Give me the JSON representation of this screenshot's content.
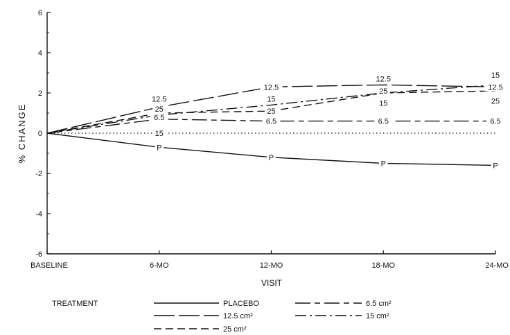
{
  "chart_data": {
    "type": "line",
    "title": "",
    "xlabel": "VISIT",
    "ylabel": "% CHANGE",
    "x": [
      "BASELINE",
      "6-MO",
      "12-MO",
      "18-MO",
      "24-MO"
    ],
    "ylim": [
      -6,
      6
    ],
    "yticks": [
      6,
      4,
      2,
      0,
      -2,
      -4,
      -6
    ],
    "reference_line": {
      "y": 0,
      "style": "dotted"
    },
    "grid": false,
    "series": [
      {
        "name": "PLACEBO",
        "marker": "P",
        "dash": "solid",
        "values": [
          0,
          -0.7,
          -1.2,
          -1.5,
          -1.6
        ]
      },
      {
        "name": "6.5 cm²",
        "marker": "6.5",
        "dash": "long-short",
        "values": [
          0,
          0.7,
          0.6,
          0.6,
          0.6
        ]
      },
      {
        "name": "12.5 cm²",
        "marker": "12.5",
        "dash": "long",
        "values": [
          0,
          1.3,
          2.3,
          2.4,
          2.3
        ]
      },
      {
        "name": "15 cm²",
        "marker": "15",
        "dash": "dash-dot",
        "values": [
          0,
          0.9,
          1.4,
          2.0,
          2.4
        ]
      },
      {
        "name": "25 cm²",
        "marker": "25",
        "dash": "dashed",
        "values": [
          0,
          1.0,
          1.1,
          2.0,
          2.1
        ]
      }
    ],
    "point_labels": [
      {
        "text": "12.5",
        "x": 1,
        "y": 1.7
      },
      {
        "text": "25",
        "x": 1,
        "y": 1.2
      },
      {
        "text": "6.5",
        "x": 1,
        "y": 0.8
      },
      {
        "text": "15",
        "x": 1,
        "y": 0.0
      },
      {
        "text": "P",
        "x": 1,
        "y": -0.7
      },
      {
        "text": "12.5",
        "x": 2,
        "y": 2.3
      },
      {
        "text": "15",
        "x": 2,
        "y": 1.7
      },
      {
        "text": "25",
        "x": 2,
        "y": 1.1
      },
      {
        "text": "6.5",
        "x": 2,
        "y": 0.6
      },
      {
        "text": "P",
        "x": 2,
        "y": -1.2
      },
      {
        "text": "12.5",
        "x": 3,
        "y": 2.7
      },
      {
        "text": "25",
        "x": 3,
        "y": 2.1
      },
      {
        "text": "15",
        "x": 3,
        "y": 1.5
      },
      {
        "text": "6.5",
        "x": 3,
        "y": 0.6
      },
      {
        "text": "P",
        "x": 3,
        "y": -1.5
      },
      {
        "text": "15",
        "x": 4,
        "y": 2.9
      },
      {
        "text": "12.5",
        "x": 4,
        "y": 2.3
      },
      {
        "text": "25",
        "x": 4,
        "y": 1.6
      },
      {
        "text": "6.5",
        "x": 4,
        "y": 0.6
      },
      {
        "text": "P",
        "x": 4,
        "y": -1.6
      }
    ],
    "legend": {
      "title": "TREATMENT",
      "placement": "bottom",
      "entries": [
        {
          "label": "PLACEBO",
          "dash": "solid"
        },
        {
          "label": "6.5 cm²",
          "dash": "long-short"
        },
        {
          "label": "12.5 cm²",
          "dash": "long"
        },
        {
          "label": "15 cm²",
          "dash": "dash-dot"
        },
        {
          "label": "25 cm²",
          "dash": "dashed"
        }
      ]
    }
  }
}
